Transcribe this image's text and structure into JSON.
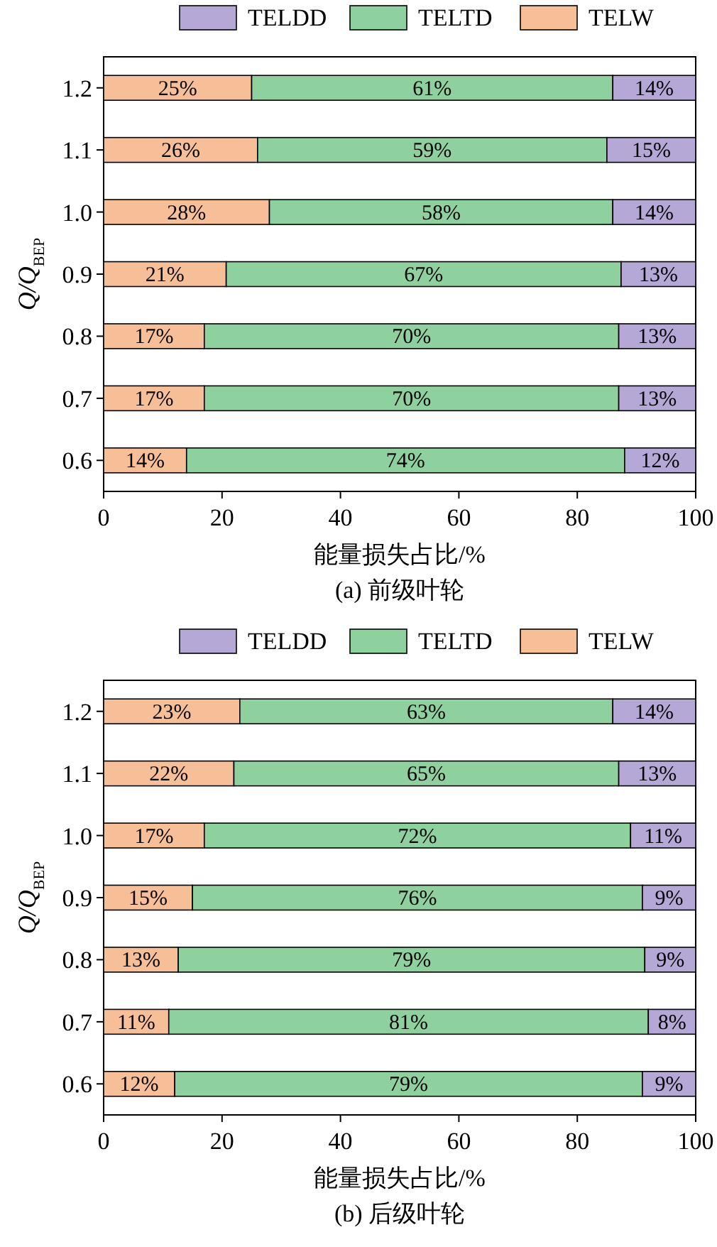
{
  "chart_data": [
    {
      "type": "bar",
      "orientation": "horizontal",
      "stacked": true,
      "title": "(a) 前级叶轮",
      "xlabel": "能量损失占比/%",
      "ylabel": "Q/Q$_{BEP}$",
      "legend": "top",
      "categories": [
        "1.2",
        "1.1",
        "1.0",
        "0.9",
        "0.8",
        "0.7",
        "0.6"
      ],
      "xlim": [
        0,
        100
      ],
      "xticks": [
        0,
        20,
        40,
        60,
        80,
        100
      ],
      "series": [
        {
          "name": "TELW",
          "color": "#f7bf98",
          "values": [
            25,
            26,
            28,
            20.7,
            17,
            17,
            14
          ],
          "value_labels": [
            "25%",
            "26%",
            "28%",
            "21%",
            "17%",
            "17%",
            "14%"
          ]
        },
        {
          "name": "TELTD",
          "color": "#8fd19e",
          "values": [
            61,
            59,
            58,
            66.7,
            70,
            70,
            74
          ],
          "value_labels": [
            "61%",
            "59%",
            "58%",
            "67%",
            "70%",
            "70%",
            "74%"
          ]
        },
        {
          "name": "TELDD",
          "color": "#b5a8d6",
          "values": [
            14,
            15,
            14,
            12.6,
            13,
            13,
            12
          ],
          "value_labels": [
            "14%",
            "15%",
            "14%",
            "13%",
            "13%",
            "13%",
            "12%"
          ]
        }
      ]
    },
    {
      "type": "bar",
      "orientation": "horizontal",
      "stacked": true,
      "title": "(b) 后级叶轮",
      "xlabel": "能量损失占比/%",
      "ylabel": "Q/Q$_{BEP}$",
      "legend": "top",
      "categories": [
        "1.2",
        "1.1",
        "1.0",
        "0.9",
        "0.8",
        "0.7",
        "0.6"
      ],
      "xlim": [
        0,
        100
      ],
      "xticks": [
        0,
        20,
        40,
        60,
        80,
        100
      ],
      "series": [
        {
          "name": "TELW",
          "color": "#f7bf98",
          "values": [
            23,
            22,
            17,
            15,
            12.6,
            11,
            12
          ],
          "value_labels": [
            "23%",
            "22%",
            "17%",
            "15%",
            "13%",
            "11%",
            "12%"
          ]
        },
        {
          "name": "TELTD",
          "color": "#8fd19e",
          "values": [
            63,
            65,
            72,
            76,
            78.8,
            81,
            79
          ],
          "value_labels": [
            "63%",
            "65%",
            "72%",
            "76%",
            "79%",
            "81%",
            "79%"
          ]
        },
        {
          "name": "TELDD",
          "color": "#b5a8d6",
          "values": [
            14,
            13,
            11,
            9,
            8.6,
            8,
            9
          ],
          "value_labels": [
            "14%",
            "13%",
            "11%",
            "9%",
            "9%",
            "8%",
            "9%"
          ]
        }
      ]
    }
  ]
}
